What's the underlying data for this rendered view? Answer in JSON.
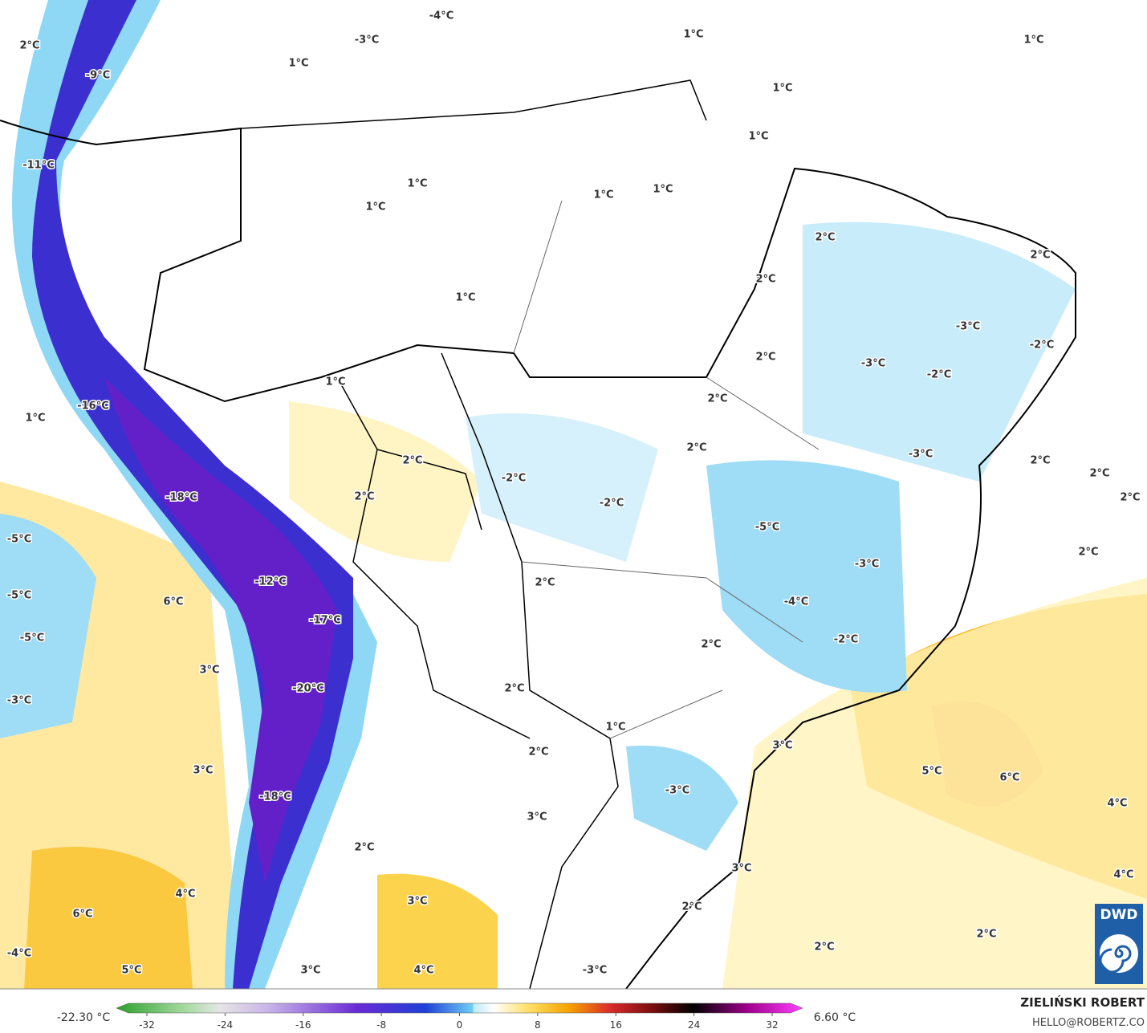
{
  "map": {
    "labels": [
      "2°C",
      "-9°C",
      "1°C",
      "-4°C",
      "-3°C",
      "1°C",
      "1°C",
      "1°C",
      "1°C",
      "-11°C",
      "1°C",
      "1°C",
      "1°C",
      "1°C",
      "2°C",
      "2°C",
      "2°C",
      "1°C",
      "-3°C",
      "-2°C",
      "2°C",
      "-3°C",
      "-2°C",
      "1°C",
      "1°C",
      "-16°C",
      "2°C",
      "2°C",
      "-3°C",
      "2°C",
      "2°C",
      "2°C",
      "2°C",
      "-2°C",
      "-18°C",
      "2°C",
      "-2°C",
      "-5°C",
      "-5°C",
      "2°C",
      "-3°C",
      "-12°C",
      "2°C",
      "-5°C",
      "6°C",
      "-4°C",
      "-17°C",
      "-5°C",
      "2°C",
      "-2°C",
      "3°C",
      "-20°C",
      "2°C",
      "-3°C",
      "1°C",
      "3°C",
      "2°C",
      "3°C",
      "5°C",
      "6°C",
      "-3°C",
      "-18°C",
      "3°C",
      "4°C",
      "2°C",
      "3°C",
      "4°C",
      "4°C",
      "3°C",
      "2°C",
      "6°C",
      "2°C",
      "-4°C",
      "2°C",
      "5°C",
      "3°C",
      "4°C",
      "-3°C"
    ],
    "logo": "DWD"
  },
  "colorbar": {
    "min_label": "-22.30 °C",
    "max_label": "6.60 °C",
    "ticks": [
      -32,
      -24,
      -16,
      -8,
      0,
      8,
      16,
      24,
      32
    ]
  },
  "credit": {
    "author": "ZIELIŃSKI ROBERT",
    "email": "HELLO@ROBERTZ.CO"
  }
}
